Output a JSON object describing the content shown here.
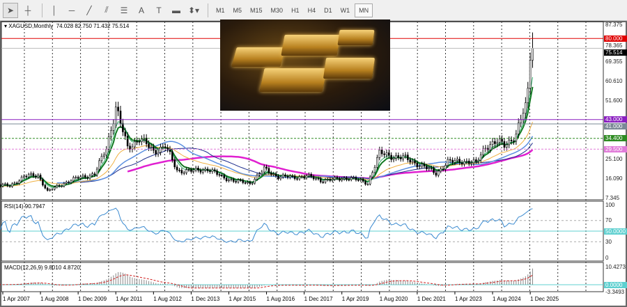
{
  "toolbar": {
    "tools": [
      {
        "name": "cursor-icon",
        "glyph": "➤"
      },
      {
        "name": "crosshair-icon",
        "glyph": "┼"
      },
      {
        "name": "vertical-line-icon",
        "glyph": "│"
      },
      {
        "name": "horizontal-line-icon",
        "glyph": "─"
      },
      {
        "name": "trendline-icon",
        "glyph": "╱"
      },
      {
        "name": "channel-icon",
        "glyph": "⫽"
      },
      {
        "name": "fibonacci-icon",
        "glyph": "☰"
      },
      {
        "name": "text-icon",
        "glyph": "A"
      },
      {
        "name": "text-label-icon",
        "glyph": "T"
      },
      {
        "name": "rectangle-icon",
        "glyph": "▬"
      },
      {
        "name": "arrows-icon",
        "glyph": "⬍▾"
      }
    ],
    "timeframes": [
      "M1",
      "M5",
      "M15",
      "M30",
      "H1",
      "H4",
      "D1",
      "W1",
      "MN"
    ],
    "selected_timeframe": "MN"
  },
  "chart": {
    "symbol_label": "XAGUSD,Monthly",
    "ohlc": "74.028 82.750 71.432 75.514",
    "price_axis": [
      "87.375",
      "78.365",
      "69.355",
      "60.610",
      "51.600",
      "25.100",
      "16.090",
      "7.345"
    ],
    "levels": [
      {
        "label": "80.000",
        "value": 80.0,
        "color": "#e00000",
        "style": "solid"
      },
      {
        "label": "75.514",
        "value": 75.514,
        "color": "#000000",
        "style": "current"
      },
      {
        "label": "43.000",
        "value": 43.0,
        "color": "#8a1fc0",
        "style": "solid"
      },
      {
        "label": "41.000",
        "value": 41.0,
        "color": "#7a8896",
        "style": "solid"
      },
      {
        "label": "34.400",
        "value": 34.4,
        "color": "#2e8b22",
        "style": "dashed"
      },
      {
        "label": "29.500",
        "value": 29.5,
        "color": "#e07ad8",
        "style": "dashed"
      }
    ],
    "colors": {
      "bull": "#000000",
      "bear": "#000000",
      "ma_fast": "#2fae6a",
      "ma_mid": "#117a22",
      "ma_orange": "#f0b040",
      "ma_blue": "#5b8fe0",
      "ma_navy": "#1a2a8a",
      "ma_magenta": "#e020d0"
    }
  },
  "chart_data": {
    "type": "candlestick",
    "x_unit": "month",
    "closes": [
      [
        "2006-10",
        12.3
      ],
      [
        "2007-01",
        13.2
      ],
      [
        "2007-07",
        12.7
      ],
      [
        "2008-01",
        17.0
      ],
      [
        "2008-07",
        17.6
      ],
      [
        "2008-11",
        10.2
      ],
      [
        "2009-06",
        14.0
      ],
      [
        "2010-01",
        16.8
      ],
      [
        "2010-07",
        18.0
      ],
      [
        "2010-12",
        30.0
      ],
      [
        "2011-04",
        48.5
      ],
      [
        "2011-09",
        30.0
      ],
      [
        "2012-02",
        34.5
      ],
      [
        "2012-08",
        28.5
      ],
      [
        "2013-01",
        31.0
      ],
      [
        "2013-06",
        19.8
      ],
      [
        "2014-01",
        19.5
      ],
      [
        "2014-07",
        20.5
      ],
      [
        "2015-01",
        16.8
      ],
      [
        "2015-07",
        14.8
      ],
      [
        "2016-01",
        14.0
      ],
      [
        "2016-07",
        20.3
      ],
      [
        "2017-01",
        17.0
      ],
      [
        "2017-07",
        16.6
      ],
      [
        "2018-01",
        17.2
      ],
      [
        "2018-07",
        15.3
      ],
      [
        "2019-01",
        15.6
      ],
      [
        "2019-07",
        16.5
      ],
      [
        "2020-03",
        14.0
      ],
      [
        "2020-08",
        27.5
      ],
      [
        "2021-01",
        26.5
      ],
      [
        "2021-07",
        25.2
      ],
      [
        "2022-01",
        22.4
      ],
      [
        "2022-08",
        18.5
      ],
      [
        "2023-01",
        23.5
      ],
      [
        "2023-07",
        24.2
      ],
      [
        "2024-01",
        23.0
      ],
      [
        "2024-05",
        31.0
      ],
      [
        "2024-10",
        32.5
      ],
      [
        "2025-01",
        31.5
      ],
      [
        "2025-06",
        36.0
      ],
      [
        "2025-09",
        46.0
      ],
      [
        "2025-10",
        48.5
      ],
      [
        "2025-11",
        56.0
      ],
      [
        "2025-12",
        74.0
      ],
      [
        "2026-01",
        75.514
      ]
    ],
    "last_high": 82.75,
    "ylim": [
      7.345,
      87.375
    ],
    "grid": true,
    "x_tick_labels": [
      "1 Apr 2007",
      "1 Aug 2008",
      "1 Dec 2009",
      "1 Apr 2011",
      "1 Aug 2012",
      "1 Dec 2013",
      "1 Apr 2015",
      "1 Aug 2016",
      "1 Dec 2017",
      "1 Apr 2019",
      "1 Aug 2020",
      "1 Dec 2021",
      "1 Apr 2023",
      "1 Aug 2024",
      "1 Dec 2025"
    ]
  },
  "rsi": {
    "label": "RSI(14) 90.7947",
    "axis": [
      "100",
      "70",
      "30",
      "0"
    ],
    "level": "50.0000",
    "line_color": "#3a8ad0",
    "level_color": "#5fd0d0"
  },
  "macd": {
    "label": "MACD(12,26,9) 9.8010 4.8720",
    "axis_top": "10.4273",
    "axis_bottom": "-3.3493",
    "zero": "0.0000",
    "signal_color": "#d02020"
  }
}
